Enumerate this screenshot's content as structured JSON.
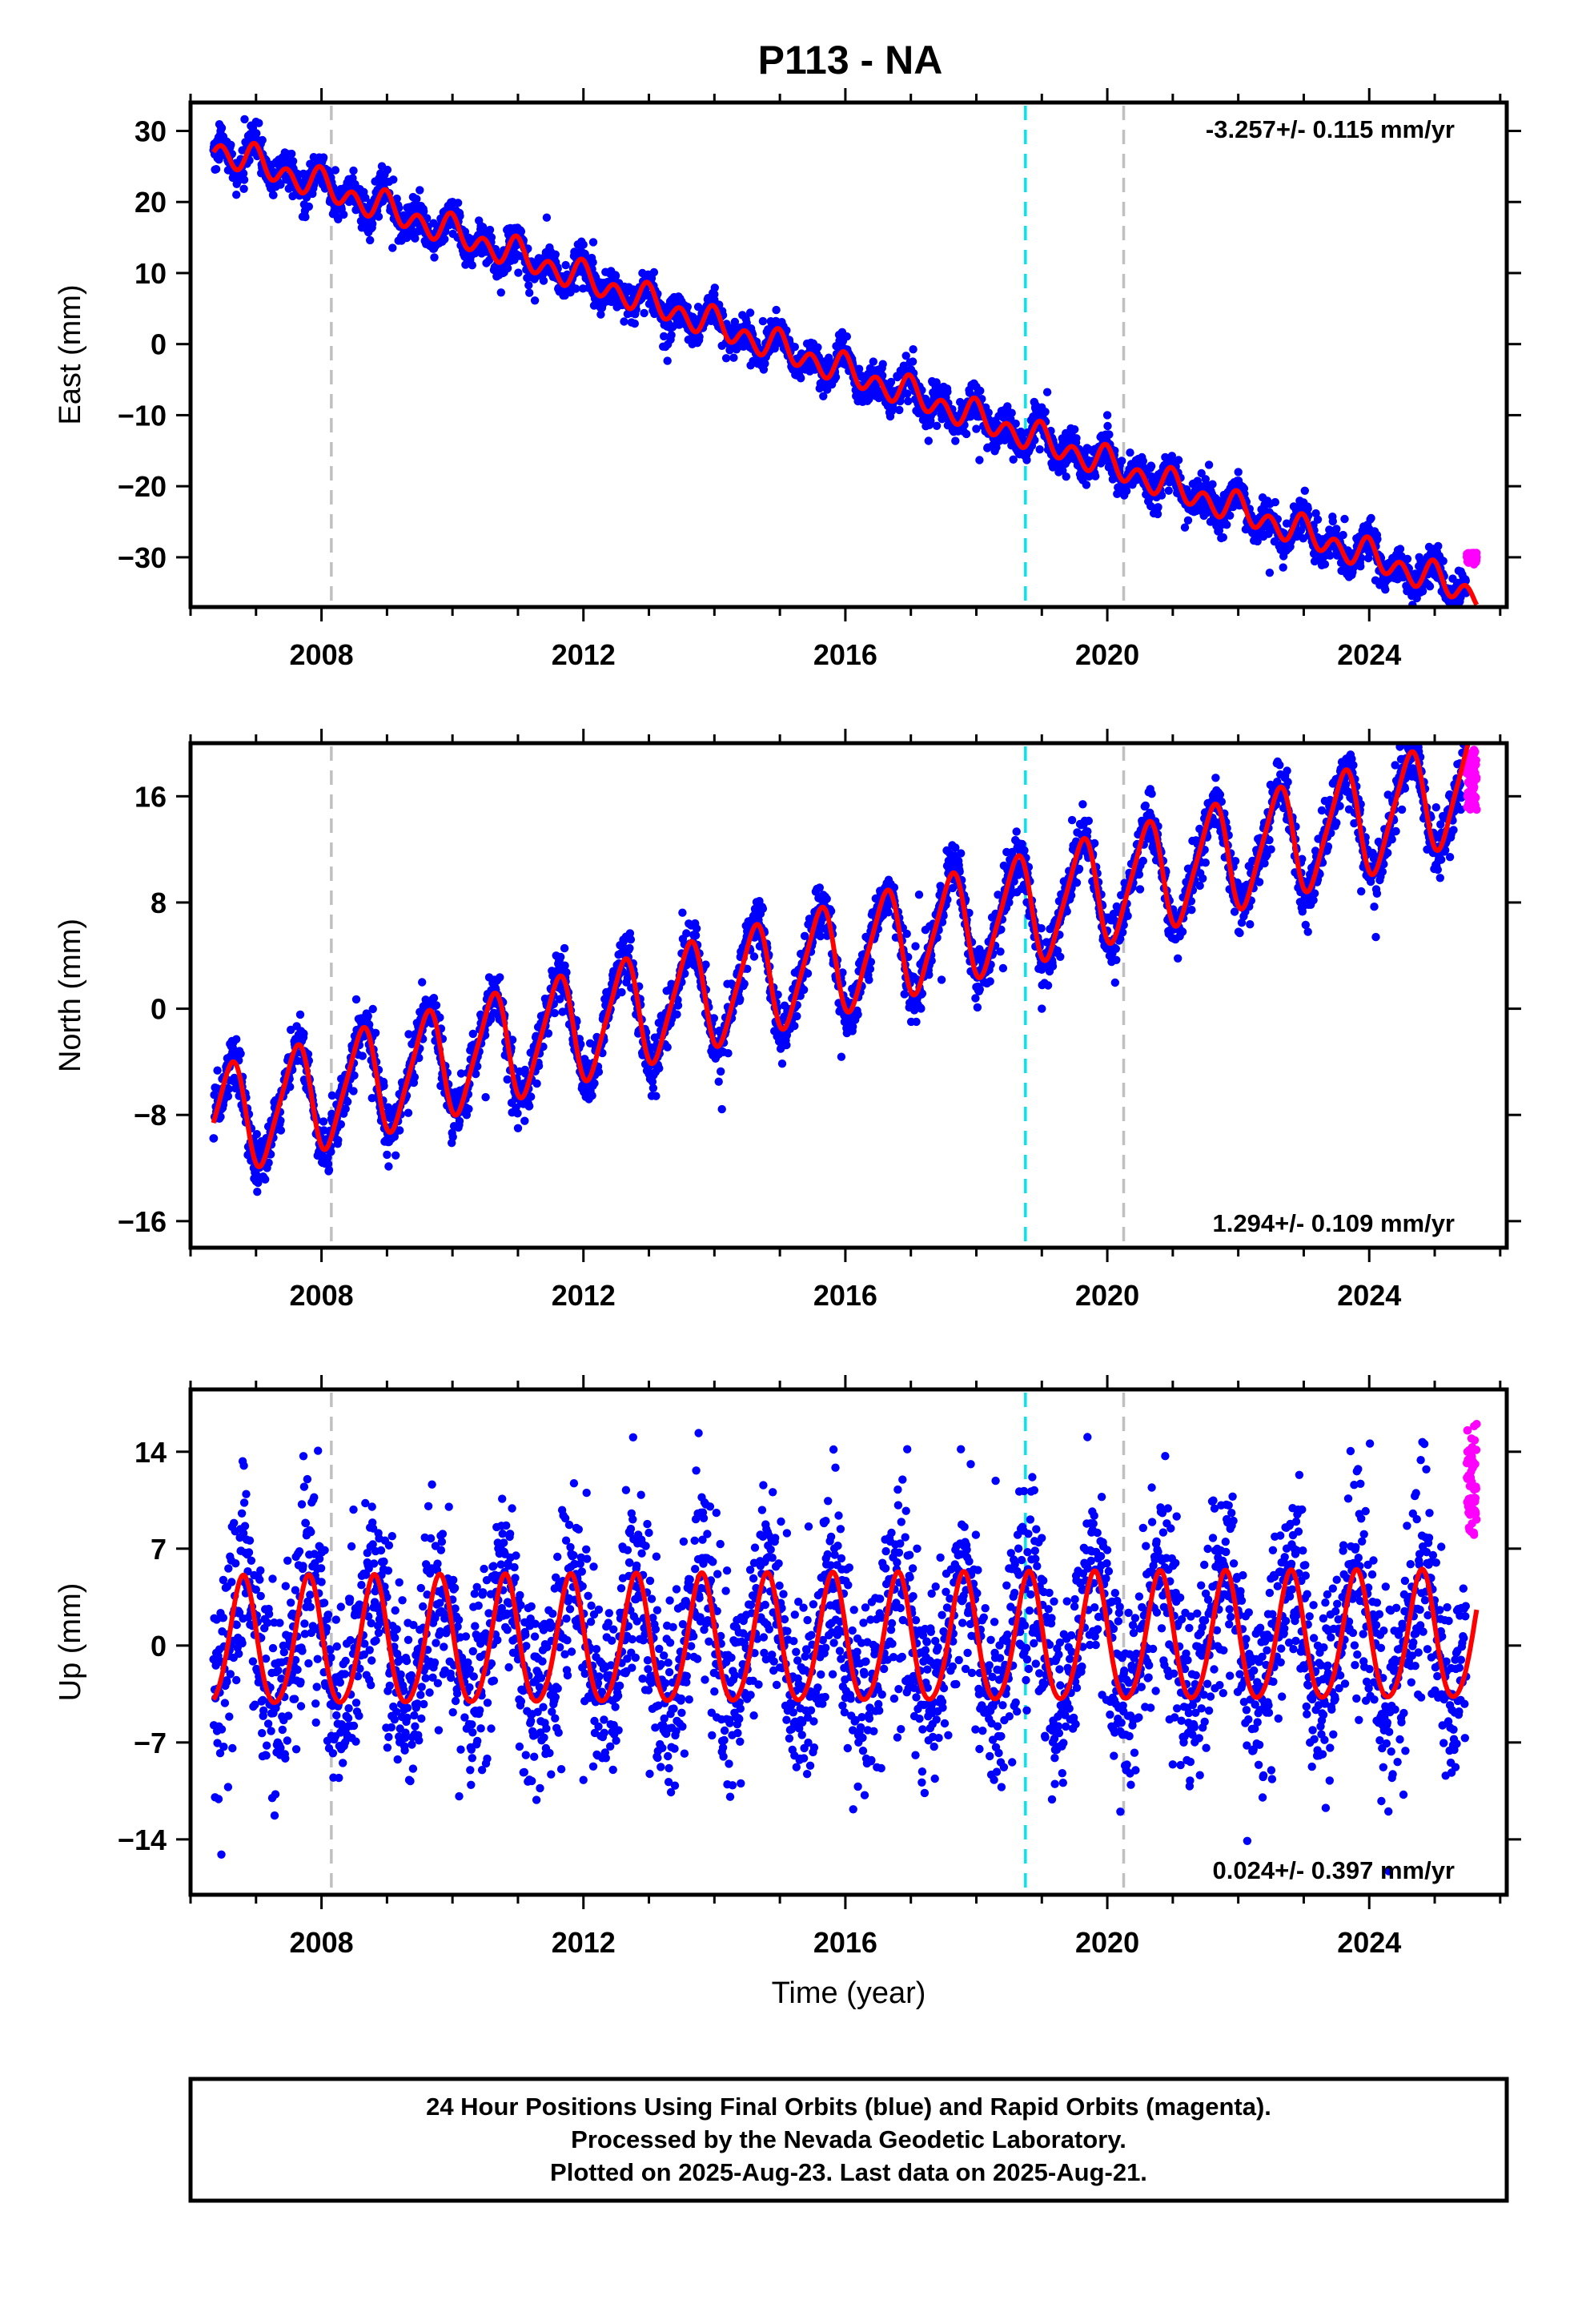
{
  "title": "P113 - NA",
  "footer": {
    "line1": "24 Hour Positions Using Final Orbits (blue) and Rapid Orbits (magenta).",
    "line2": "Processed by the Nevada Geodetic Laboratory.",
    "line3": "Plotted on 2025-Aug-23. Last data on 2025-Aug-21."
  },
  "colors": {
    "final_orbits": "#0000ff",
    "rapid_orbits": "#ff00ff",
    "model": "#ff0000",
    "event_cyan": "#00e5ee",
    "event_gray": "#c0c0c0"
  },
  "chart_data": [
    {
      "type": "scatter",
      "ylabel": "East (mm)",
      "xlabel": "",
      "xlim": [
        2006.0,
        2026.1
      ],
      "ylim": [
        -37,
        34
      ],
      "yticks": [
        -30,
        -20,
        -10,
        0,
        10,
        20,
        30
      ],
      "yticklabels": [
        "−30",
        "−20",
        "−10",
        "0",
        "10",
        "20",
        "30"
      ],
      "xticks": [
        2008,
        2012,
        2016,
        2020,
        2024
      ],
      "xticklabels": [
        "2008",
        "2012",
        "2016",
        "2020",
        "2024"
      ],
      "data_start": 2006.35,
      "final_end": 2025.48,
      "data_end": 2025.64,
      "rate_text": "-3.257+/- 0.115 mm/yr",
      "rate_position": "top-right",
      "event_lines": [
        {
          "x": 2008.15,
          "color": "gray"
        },
        {
          "x": 2018.75,
          "color": "cyan"
        },
        {
          "x": 2020.25,
          "color": "gray"
        }
      ],
      "series": [
        {
          "role": "final",
          "x": [
            2006.4,
            2006.9,
            2007.4,
            2008.0,
            2008.9,
            2009.5,
            2010.0,
            2010.9,
            2011.5,
            2012.0,
            2012.9,
            2013.5,
            2014.0,
            2014.9,
            2015.5,
            2016.0,
            2016.9,
            2017.5,
            2018.0,
            2018.9,
            2019.5,
            2020.0,
            2020.9,
            2021.5,
            2022.0,
            2022.9,
            2023.5,
            2024.0,
            2024.9,
            2025.4
          ],
          "y": [
            27,
            29,
            25,
            25,
            24,
            19,
            20,
            16,
            13,
            14,
            10,
            6,
            7,
            2,
            0,
            1,
            -4,
            -6,
            -6,
            -9,
            -12,
            -10,
            -17,
            -19,
            -18,
            -23,
            -26,
            -26,
            -30,
            -32
          ]
        },
        {
          "role": "rapid",
          "x": [
            2025.5,
            2025.55,
            2025.6,
            2025.64
          ],
          "y": [
            -29.5,
            -30,
            -31,
            -30
          ]
        },
        {
          "role": "model",
          "offset": 27.6,
          "rate": -3.257,
          "annual_amp": 1.0,
          "annual_phase": 0.75,
          "semiannual_amp": 1.7,
          "semiannual_phase": 0.35,
          "noise": 1.3
        }
      ]
    },
    {
      "type": "scatter",
      "ylabel": "North (mm)",
      "xlabel": "",
      "xlim": [
        2006.0,
        2026.1
      ],
      "ylim": [
        -18,
        20
      ],
      "yticks": [
        -16,
        -8,
        0,
        8,
        16
      ],
      "yticklabels": [
        "−16",
        "−8",
        "0",
        "8",
        "16"
      ],
      "xticks": [
        2008,
        2012,
        2016,
        2020,
        2024
      ],
      "xticklabels": [
        "2008",
        "2012",
        "2016",
        "2020",
        "2024"
      ],
      "data_start": 2006.35,
      "final_end": 2025.48,
      "data_end": 2025.64,
      "rate_text": "1.294+/- 0.109 mm/yr",
      "rate_position": "bottom-right",
      "event_lines": [
        {
          "x": 2008.15,
          "color": "gray"
        },
        {
          "x": 2018.75,
          "color": "cyan"
        },
        {
          "x": 2020.25,
          "color": "gray"
        }
      ],
      "series": [
        {
          "role": "final",
          "x": [
            2006.5,
            2007.0,
            2007.5,
            2008.0,
            2009.0,
            2009.5,
            2010.5,
            2011.0,
            2012.5,
            2013.5,
            2014.5,
            2015.5,
            2016.5,
            2017.5,
            2018.5,
            2019.0,
            2020.5,
            2021.5,
            2022.5,
            2023.5,
            2024.5,
            2025.4
          ],
          "y": [
            -7,
            -13,
            -5,
            -11,
            -11,
            -3,
            -2,
            -9,
            1,
            2,
            3,
            5,
            6,
            7,
            8,
            0,
            9,
            11,
            12,
            14,
            15,
            15
          ]
        },
        {
          "role": "rapid",
          "x": [
            2025.5,
            2025.55,
            2025.6,
            2025.64
          ],
          "y": [
            16,
            18,
            19.5,
            15
          ]
        },
        {
          "role": "model",
          "offset": -8.6,
          "rate": 1.294,
          "annual_amp": 4.0,
          "annual_phase": 0.35,
          "semiannual_amp": 0.7,
          "semiannual_phase": 0.1,
          "noise": 1.0,
          "late_drift": 0.6
        }
      ]
    },
    {
      "type": "scatter",
      "ylabel": "Up (mm)",
      "xlabel": "Time (year)",
      "xlim": [
        2006.0,
        2026.1
      ],
      "ylim": [
        -18,
        18.5
      ],
      "yticks": [
        -14,
        -7,
        0,
        7,
        14
      ],
      "yticklabels": [
        "−14",
        "−7",
        "0",
        "7",
        "14"
      ],
      "xticks": [
        2008,
        2012,
        2016,
        2020,
        2024
      ],
      "xticklabels": [
        "2008",
        "2012",
        "2016",
        "2020",
        "2024"
      ],
      "data_start": 2006.35,
      "final_end": 2025.48,
      "data_end": 2025.64,
      "rate_text": "0.024+/- 0.397 mm/yr",
      "rate_position": "bottom-right",
      "event_lines": [
        {
          "x": 2008.15,
          "color": "gray"
        },
        {
          "x": 2018.75,
          "color": "cyan"
        },
        {
          "x": 2020.25,
          "color": "gray"
        }
      ],
      "series": [
        {
          "role": "final",
          "x": [
            2006.5,
            2007.1,
            2007.6,
            2008.7,
            2009.2,
            2010.7,
            2011.2,
            2012.7,
            2013.3,
            2014.7,
            2015.7,
            2016.2,
            2017.7,
            2018.3,
            2019.2,
            2020.2,
            2021.7,
            2022.7,
            2023.3,
            2024.7
          ],
          "y": [
            2,
            -8,
            4,
            6,
            -6,
            7,
            -5,
            6,
            -6,
            8,
            9,
            -7,
            5,
            -4,
            -10,
            -12,
            6,
            6,
            -5,
            4
          ]
        },
        {
          "role": "rapid",
          "x": [
            2025.5,
            2025.55,
            2025.6,
            2025.64
          ],
          "y": [
            14,
            10,
            8,
            16
          ]
        },
        {
          "role": "model",
          "offset": 0.0,
          "rate": 0.024,
          "annual_amp": 4.6,
          "annual_phase": 0.55,
          "semiannual_amp": 0.5,
          "semiannual_phase": 0.2,
          "noise": 3.6
        }
      ]
    }
  ]
}
